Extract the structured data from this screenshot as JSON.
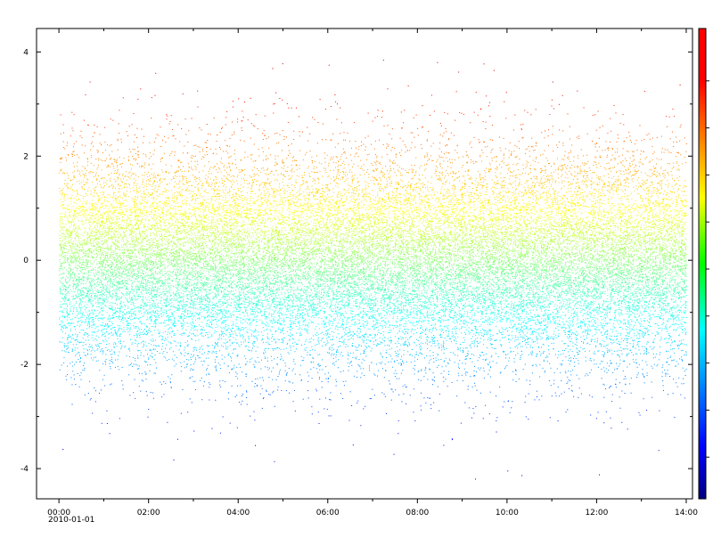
{
  "chart_data": {
    "type": "scatter",
    "title": "",
    "xlabel": "",
    "ylabel": "",
    "x_axis": {
      "kind": "time",
      "start": "2010-01-01 00:00",
      "range_hours": [
        -0.5,
        14.14
      ],
      "tick_labels": [
        "00:00",
        "02:00",
        "04:00",
        "06:00",
        "08:00",
        "10:00",
        "12:00",
        "14:00"
      ],
      "tick_hours": [
        0,
        2,
        4,
        6,
        8,
        10,
        12,
        14
      ],
      "date_label": "2010-01-01"
    },
    "y_axis": {
      "range": [
        -4.58,
        4.45
      ],
      "tick_labels": [
        "4",
        "2",
        "0",
        "-2",
        "-4"
      ],
      "tick_values": [
        4,
        2,
        0,
        -2,
        -4
      ]
    },
    "series": {
      "distribution": "normal",
      "mean": 0,
      "std": 1,
      "x_span_hours": [
        0,
        14
      ],
      "approx_points": 30000,
      "color_by": "y"
    },
    "colorbar": {
      "colormap": "jet",
      "range": [
        -4.5,
        4.3
      ],
      "position": "right",
      "tick_labels_shown": false
    },
    "grid": false,
    "legend": "none"
  }
}
